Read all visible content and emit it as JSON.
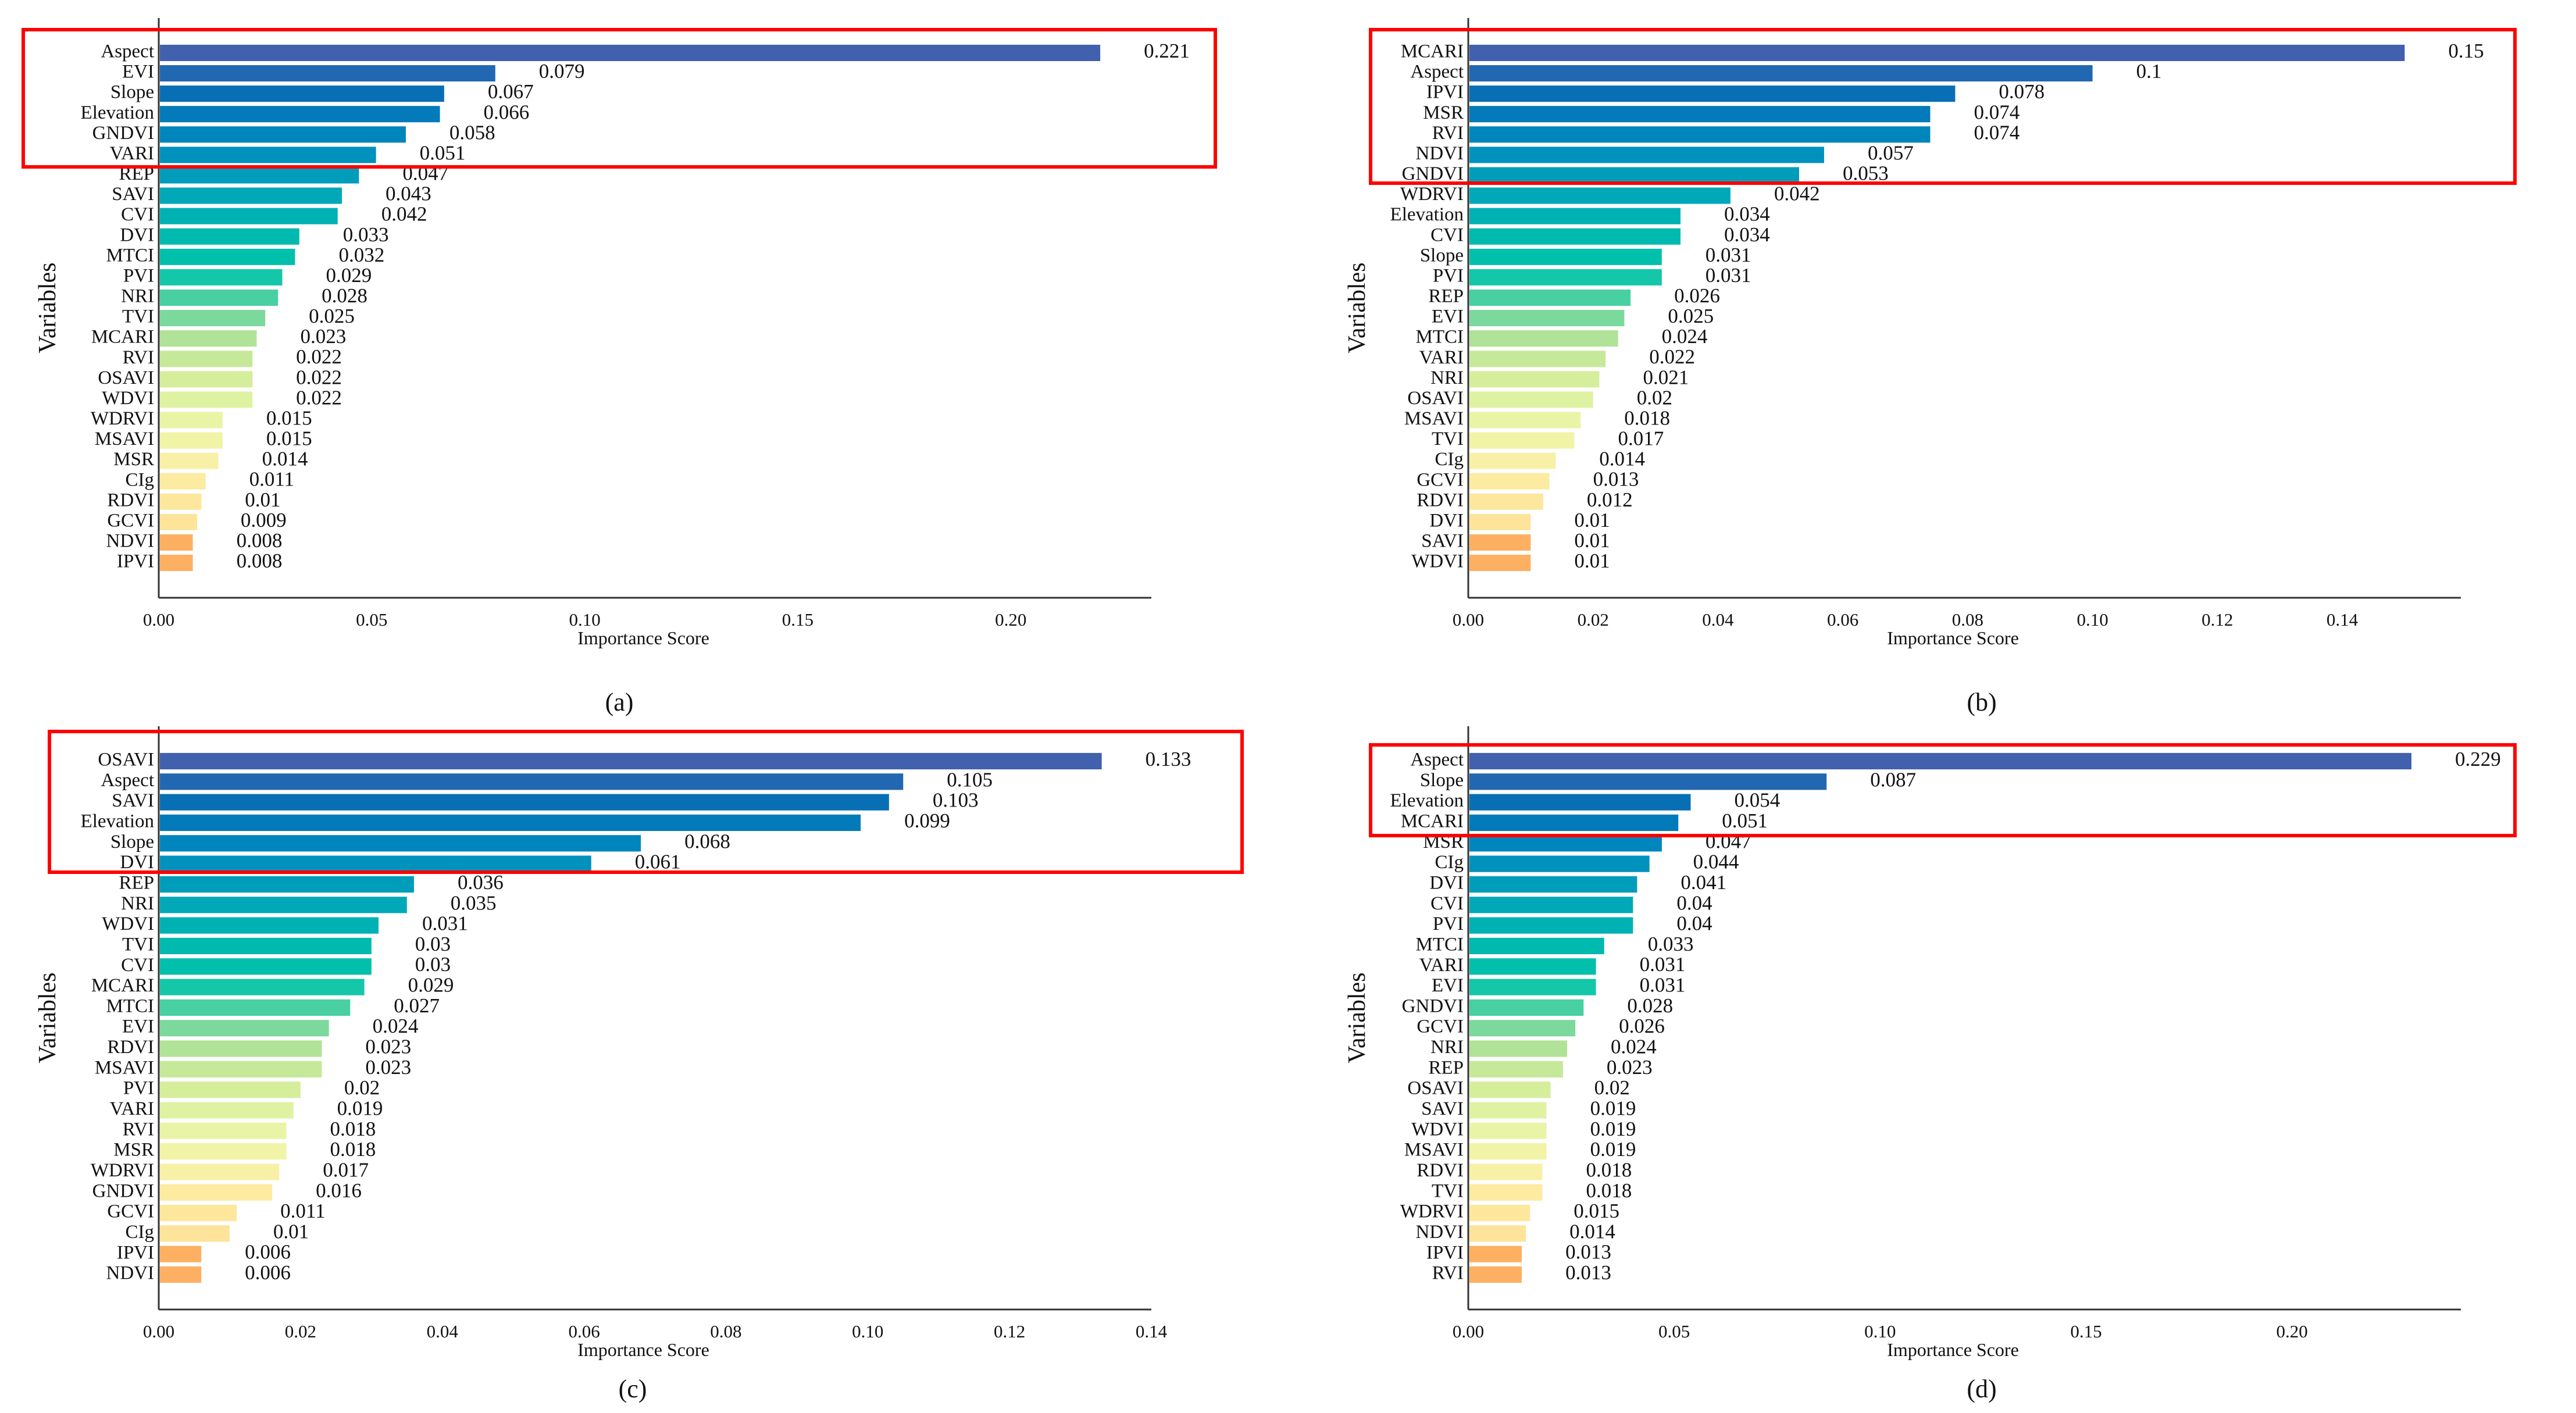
{
  "colors": {
    "highlight_box": "#ff0000",
    "axis": "#333333",
    "palette": [
      "#4160ad",
      "#0a6cb4",
      "#0080bb",
      "#0096bd",
      "#00a9b8",
      "#00b8b0",
      "#00c4aa",
      "#5cd3a0",
      "#b8e597",
      "#d4ee9b",
      "#e6f4a6",
      "#f5f3a8",
      "#fdeaa0",
      "#fee49a"
    ],
    "palette_tail": "#fdb062"
  },
  "chart_data": [
    {
      "type": "bar",
      "orientation": "horizontal",
      "caption": "(a)",
      "xlabel": "Importance Score",
      "ylabel": "Variables",
      "xlim": [
        0,
        0.233
      ],
      "ticks": [
        0,
        0.05,
        0.1,
        0.15,
        0.2
      ],
      "tick_labels": [
        "0.00",
        "0.05",
        "0.10",
        "0.15",
        "0.20"
      ],
      "highlight_top_n": 6,
      "categories": [
        "Aspect",
        "EVI",
        "Slope",
        "Elevation",
        "GNDVI",
        "VARI",
        "REP",
        "SAVI",
        "CVI",
        "DVI",
        "MTCI",
        "PVI",
        "NRI",
        "TVI",
        "MCARI",
        "RVI",
        "OSAVI",
        "WDVI",
        "WDRVI",
        "MSAVI",
        "MSR",
        "CIg",
        "RDVI",
        "GCVI",
        "NDVI",
        "IPVI"
      ],
      "values": [
        0.221,
        0.079,
        0.067,
        0.066,
        0.058,
        0.051,
        0.047,
        0.043,
        0.042,
        0.033,
        0.032,
        0.029,
        0.028,
        0.025,
        0.023,
        0.022,
        0.022,
        0.022,
        0.015,
        0.015,
        0.014,
        0.011,
        0.01,
        0.009,
        0.008,
        0.008
      ],
      "value_labels": [
        "0.221",
        "0.079",
        "0.067",
        "0.066",
        "0.058",
        "0.051",
        "0.047",
        "0.043",
        "0.042",
        "0.033",
        "0.032",
        "0.029",
        "0.028",
        "0.025",
        "0.023",
        "0.022",
        "0.022",
        "0.022",
        "0.015",
        "0.015",
        "0.014",
        "0.011",
        "0.01",
        "0.009",
        "0.008",
        "0.008"
      ]
    },
    {
      "type": "bar",
      "orientation": "horizontal",
      "caption": "(b)",
      "xlabel": "Importance Score",
      "ylabel": "Variables",
      "xlim": [
        0,
        0.159
      ],
      "ticks": [
        0,
        0.02,
        0.04,
        0.06,
        0.08,
        0.1,
        0.12,
        0.14
      ],
      "tick_labels": [
        "0.00",
        "0.02",
        "0.04",
        "0.06",
        "0.08",
        "0.10",
        "0.12",
        "0.14"
      ],
      "highlight_top_n": 7,
      "categories": [
        "MCARI",
        "Aspect",
        "IPVI",
        "MSR",
        "RVI",
        "NDVI",
        "GNDVI",
        "WDRVI",
        "Elevation",
        "CVI",
        "Slope",
        "PVI",
        "REP",
        "EVI",
        "MTCI",
        "VARI",
        "NRI",
        "OSAVI",
        "MSAVI",
        "TVI",
        "CIg",
        "GCVI",
        "RDVI",
        "DVI",
        "SAVI",
        "WDVI"
      ],
      "values": [
        0.15,
        0.1,
        0.078,
        0.074,
        0.074,
        0.057,
        0.053,
        0.042,
        0.034,
        0.034,
        0.031,
        0.031,
        0.026,
        0.025,
        0.024,
        0.022,
        0.021,
        0.02,
        0.018,
        0.017,
        0.014,
        0.013,
        0.012,
        0.01,
        0.01,
        0.01
      ],
      "value_labels": [
        "0.15",
        "0.1",
        "0.078",
        "0.074",
        "0.074",
        "0.057",
        "0.053",
        "0.042",
        "0.034",
        "0.034",
        "0.031",
        "0.031",
        "0.026",
        "0.025",
        "0.024",
        "0.022",
        "0.021",
        "0.02",
        "0.018",
        "0.017",
        "0.014",
        "0.013",
        "0.012",
        "0.01",
        "0.01",
        "0.01"
      ]
    },
    {
      "type": "bar",
      "orientation": "horizontal",
      "caption": "(c)",
      "xlabel": "Importance Score",
      "ylabel": "Variables",
      "xlim": [
        0,
        0.14
      ],
      "ticks": [
        0,
        0.02,
        0.04,
        0.06,
        0.08,
        0.1,
        0.12,
        0.14
      ],
      "tick_labels": [
        "0.00",
        "0.02",
        "0.04",
        "0.06",
        "0.08",
        "0.10",
        "0.12",
        "0.14"
      ],
      "highlight_top_n": 6,
      "categories": [
        "OSAVI",
        "Aspect",
        "SAVI",
        "Elevation",
        "Slope",
        "DVI",
        "REP",
        "NRI",
        "WDVI",
        "TVI",
        "CVI",
        "MCARI",
        "MTCI",
        "EVI",
        "RDVI",
        "MSAVI",
        "PVI",
        "VARI",
        "RVI",
        "MSR",
        "WDRVI",
        "GNDVI",
        "GCVI",
        "CIg",
        "IPVI",
        "NDVI"
      ],
      "values": [
        0.133,
        0.105,
        0.103,
        0.099,
        0.068,
        0.061,
        0.036,
        0.035,
        0.031,
        0.03,
        0.03,
        0.029,
        0.027,
        0.024,
        0.023,
        0.023,
        0.02,
        0.019,
        0.018,
        0.018,
        0.017,
        0.016,
        0.011,
        0.01,
        0.006,
        0.006
      ],
      "value_labels": [
        "0.133",
        "0.105",
        "0.103",
        "0.099",
        "0.068",
        "0.061",
        "0.036",
        "0.035",
        "0.031",
        "0.03",
        "0.03",
        "0.029",
        "0.027",
        "0.024",
        "0.023",
        "0.023",
        "0.02",
        "0.019",
        "0.018",
        "0.018",
        "0.017",
        "0.016",
        "0.011",
        "0.01",
        "0.006",
        "0.006"
      ]
    },
    {
      "type": "bar",
      "orientation": "horizontal",
      "caption": "(d)",
      "xlabel": "Importance Score",
      "ylabel": "Variables",
      "xlim": [
        0,
        0.241
      ],
      "ticks": [
        0,
        0.05,
        0.1,
        0.15,
        0.2
      ],
      "tick_labels": [
        "0.00",
        "0.05",
        "0.10",
        "0.15",
        "0.20"
      ],
      "highlight_top_n": 4,
      "categories": [
        "Aspect",
        "Slope",
        "Elevation",
        "MCARI",
        "MSR",
        "CIg",
        "DVI",
        "CVI",
        "PVI",
        "MTCI",
        "VARI",
        "EVI",
        "GNDVI",
        "GCVI",
        "NRI",
        "REP",
        "OSAVI",
        "SAVI",
        "WDVI",
        "MSAVI",
        "RDVI",
        "TVI",
        "WDRVI",
        "NDVI",
        "IPVI",
        "RVI"
      ],
      "values": [
        0.229,
        0.087,
        0.054,
        0.051,
        0.047,
        0.044,
        0.041,
        0.04,
        0.04,
        0.033,
        0.031,
        0.031,
        0.028,
        0.026,
        0.024,
        0.023,
        0.02,
        0.019,
        0.019,
        0.019,
        0.018,
        0.018,
        0.015,
        0.014,
        0.013,
        0.013
      ],
      "value_labels": [
        "0.229",
        "0.087",
        "0.054",
        "0.051",
        "0.047",
        "0.044",
        "0.041",
        "0.04",
        "0.04",
        "0.033",
        "0.031",
        "0.031",
        "0.028",
        "0.026",
        "0.024",
        "0.023",
        "0.02",
        "0.019",
        "0.019",
        "0.019",
        "0.018",
        "0.018",
        "0.015",
        "0.014",
        "0.013",
        "0.013"
      ]
    }
  ]
}
